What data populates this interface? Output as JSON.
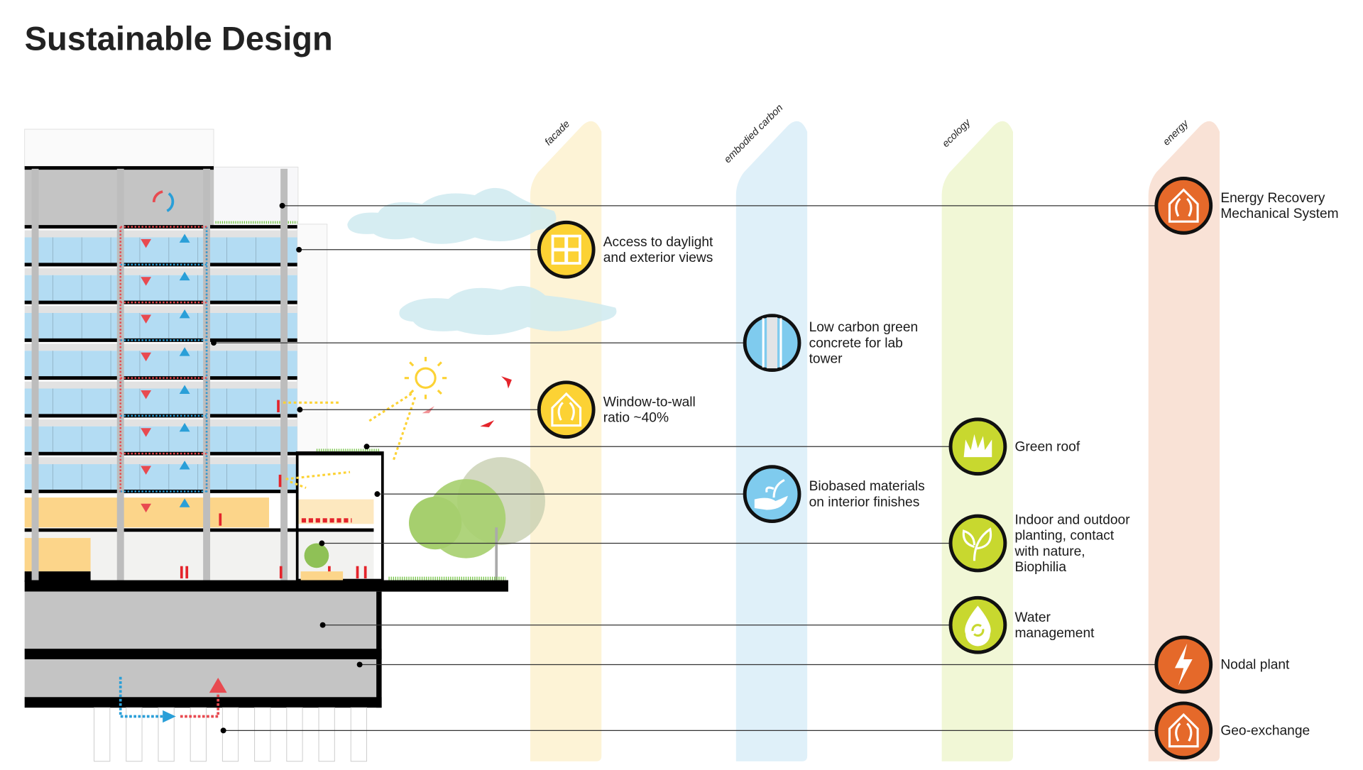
{
  "title": "Sustainable Design",
  "columns": [
    {
      "label": "facade",
      "color": "#fdf3d6"
    },
    {
      "label": "embodied carbon",
      "color": "#dff0f9"
    },
    {
      "label": "ecology",
      "color": "#f1f7d6"
    },
    {
      "label": "energy",
      "color": "#f9e2d6"
    }
  ],
  "icon_colors": {
    "facade": "#fcd234",
    "embodied_carbon": "#7fcbee",
    "ecology": "#c8d82f",
    "energy": "#e5692a"
  },
  "features": [
    {
      "column": "energy",
      "icon": "house-airflow-icon",
      "lines": [
        "Energy Recovery",
        "Mechanical System"
      ]
    },
    {
      "column": "facade",
      "icon": "window-icon",
      "lines": [
        "Access to daylight",
        "and exterior views"
      ]
    },
    {
      "column": "embodied carbon",
      "icon": "concrete-column-icon",
      "lines": [
        "Low carbon green",
        "concrete for lab",
        "tower"
      ]
    },
    {
      "column": "facade",
      "icon": "house-window-icon",
      "lines": [
        "Window-to-wall",
        "ratio ~40%"
      ]
    },
    {
      "column": "ecology",
      "icon": "grass-icon",
      "lines": [
        "Green roof"
      ]
    },
    {
      "column": "embodied carbon",
      "icon": "hand-sprout-icon",
      "lines": [
        "Biobased materials",
        "on interior finishes"
      ]
    },
    {
      "column": "ecology",
      "icon": "leaf-icon",
      "lines": [
        "Indoor and outdoor",
        "planting, contact",
        "with nature,",
        "Biophilia"
      ]
    },
    {
      "column": "ecology",
      "icon": "water-drop-icon",
      "lines": [
        "Water",
        "management"
      ]
    },
    {
      "column": "energy",
      "icon": "lightning-icon",
      "lines": [
        "Nodal plant"
      ]
    },
    {
      "column": "energy",
      "icon": "geo-exchange-house-icon",
      "lines": [
        "Geo-exchange"
      ]
    }
  ]
}
